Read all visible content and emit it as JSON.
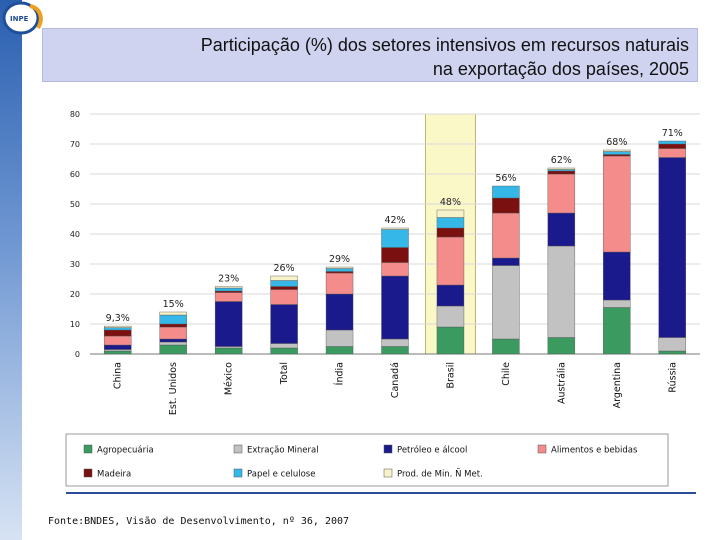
{
  "title": {
    "line1": "Participação (%) dos setores intensivos em recursos naturais",
    "line2": "na exportação dos países, 2005"
  },
  "source": "Fonte:BNDES, Visão de Desenvolvimento, nº 36, 2007",
  "logo": {
    "text": "INPE",
    "icon": "inpe-logo-icon"
  },
  "chart_data": {
    "type": "bar",
    "stacked": true,
    "ylim": [
      0,
      80
    ],
    "yticks": [
      0,
      10,
      20,
      30,
      40,
      50,
      60,
      70,
      80
    ],
    "grid": true,
    "legend_position": "bottom",
    "highlighted_category": "Brasil",
    "categories": [
      "China",
      "Est. Unidos",
      "México",
      "Total",
      "Índia",
      "Canadá",
      "Brasil",
      "Chile",
      "Austrália",
      "Argentina",
      "Rússia"
    ],
    "totals": [
      "9,3%",
      "15%",
      "23%",
      "26%",
      "29%",
      "42%",
      "48%",
      "56%",
      "62%",
      "68%",
      "71%"
    ],
    "series": [
      {
        "name": "Agropecuária",
        "color": "#3a9a5f",
        "values": [
          1,
          3,
          2,
          2,
          2.5,
          2.5,
          9,
          5,
          5.5,
          15.5,
          1
        ]
      },
      {
        "name": "Extração Mineral",
        "color": "#c2c2c2",
        "values": [
          0.5,
          1,
          0.5,
          1.5,
          5.5,
          2.5,
          7,
          24.5,
          30.5,
          2.5,
          4.5
        ]
      },
      {
        "name": "Petróleo e álcool",
        "color": "#1a1a8c",
        "values": [
          1.5,
          1,
          15,
          13,
          12,
          21,
          7,
          2.5,
          11,
          16,
          60
        ]
      },
      {
        "name": "Alimentos e bebidas",
        "color": "#f48c8c",
        "values": [
          3,
          4,
          3,
          5,
          7,
          4.5,
          16,
          15,
          13,
          32,
          3
        ]
      },
      {
        "name": "Madeira",
        "color": "#7a1010",
        "values": [
          2,
          1,
          0.5,
          1,
          0.5,
          5,
          3,
          5,
          1,
          0.5,
          1.5
        ]
      },
      {
        "name": "Papel e celulose",
        "color": "#35b8e8",
        "values": [
          0.8,
          3,
          1,
          2,
          1,
          6,
          3.5,
          4,
          0.5,
          1,
          1
        ]
      },
      {
        "name": "Prod. de Min. Ñ Met.",
        "color": "#f7f2c8",
        "values": [
          0.5,
          1,
          0.5,
          1.5,
          0.5,
          0.5,
          2.5,
          0,
          0.5,
          0.5,
          0
        ]
      }
    ]
  }
}
